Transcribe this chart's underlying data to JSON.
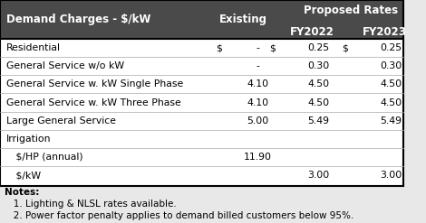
{
  "header_bg": "#4a4a4a",
  "header_text_color": "#ffffff",
  "body_bg": "#ffffff",
  "body_text_color": "#000000",
  "border_color": "#000000",
  "notes_bg": "#e8e8e8",
  "col_header": "Demand Charges - $/kW",
  "col_existing": "Existing",
  "col_proposed": "Proposed Rates",
  "col_fy2022": "FY2022",
  "col_fy2023": "FY2023",
  "rows": [
    {
      "label": "Residential",
      "existing_dollar": "$",
      "existing": "-",
      "dollar2022": "$",
      "fy2022": "0.25",
      "dollar2023": "$",
      "fy2023": "0.25"
    },
    {
      "label": "General Service w/o kW",
      "existing_dollar": "",
      "existing": "-",
      "dollar2022": "",
      "fy2022": "0.30",
      "dollar2023": "",
      "fy2023": "0.30"
    },
    {
      "label": "General Service w. kW Single Phase",
      "existing_dollar": "",
      "existing": "4.10",
      "dollar2022": "",
      "fy2022": "4.50",
      "dollar2023": "",
      "fy2023": "4.50"
    },
    {
      "label": "General Service w. kW Three Phase",
      "existing_dollar": "",
      "existing": "4.10",
      "dollar2022": "",
      "fy2022": "4.50",
      "dollar2023": "",
      "fy2023": "4.50"
    },
    {
      "label": "Large General Service",
      "existing_dollar": "",
      "existing": "5.00",
      "dollar2022": "",
      "fy2022": "5.49",
      "dollar2023": "",
      "fy2023": "5.49"
    },
    {
      "label": "Irrigation",
      "existing_dollar": "",
      "existing": "",
      "dollar2022": "",
      "fy2022": "",
      "dollar2023": "",
      "fy2023": ""
    },
    {
      "label": "   $/HP (annual)",
      "existing_dollar": "",
      "existing": "11.90",
      "dollar2022": "",
      "fy2022": "",
      "dollar2023": "",
      "fy2023": ""
    },
    {
      "label": "   $/kW",
      "existing_dollar": "",
      "existing": "",
      "dollar2022": "",
      "fy2022": "3.00",
      "dollar2023": "",
      "fy2023": "3.00"
    }
  ],
  "notes": [
    "Notes:",
    "   1. Lighting & NLSL rates available.",
    "   2. Power factor penalty applies to demand billed customers below 95%."
  ],
  "figsize": [
    4.7,
    2.47
  ],
  "dpi": 100
}
